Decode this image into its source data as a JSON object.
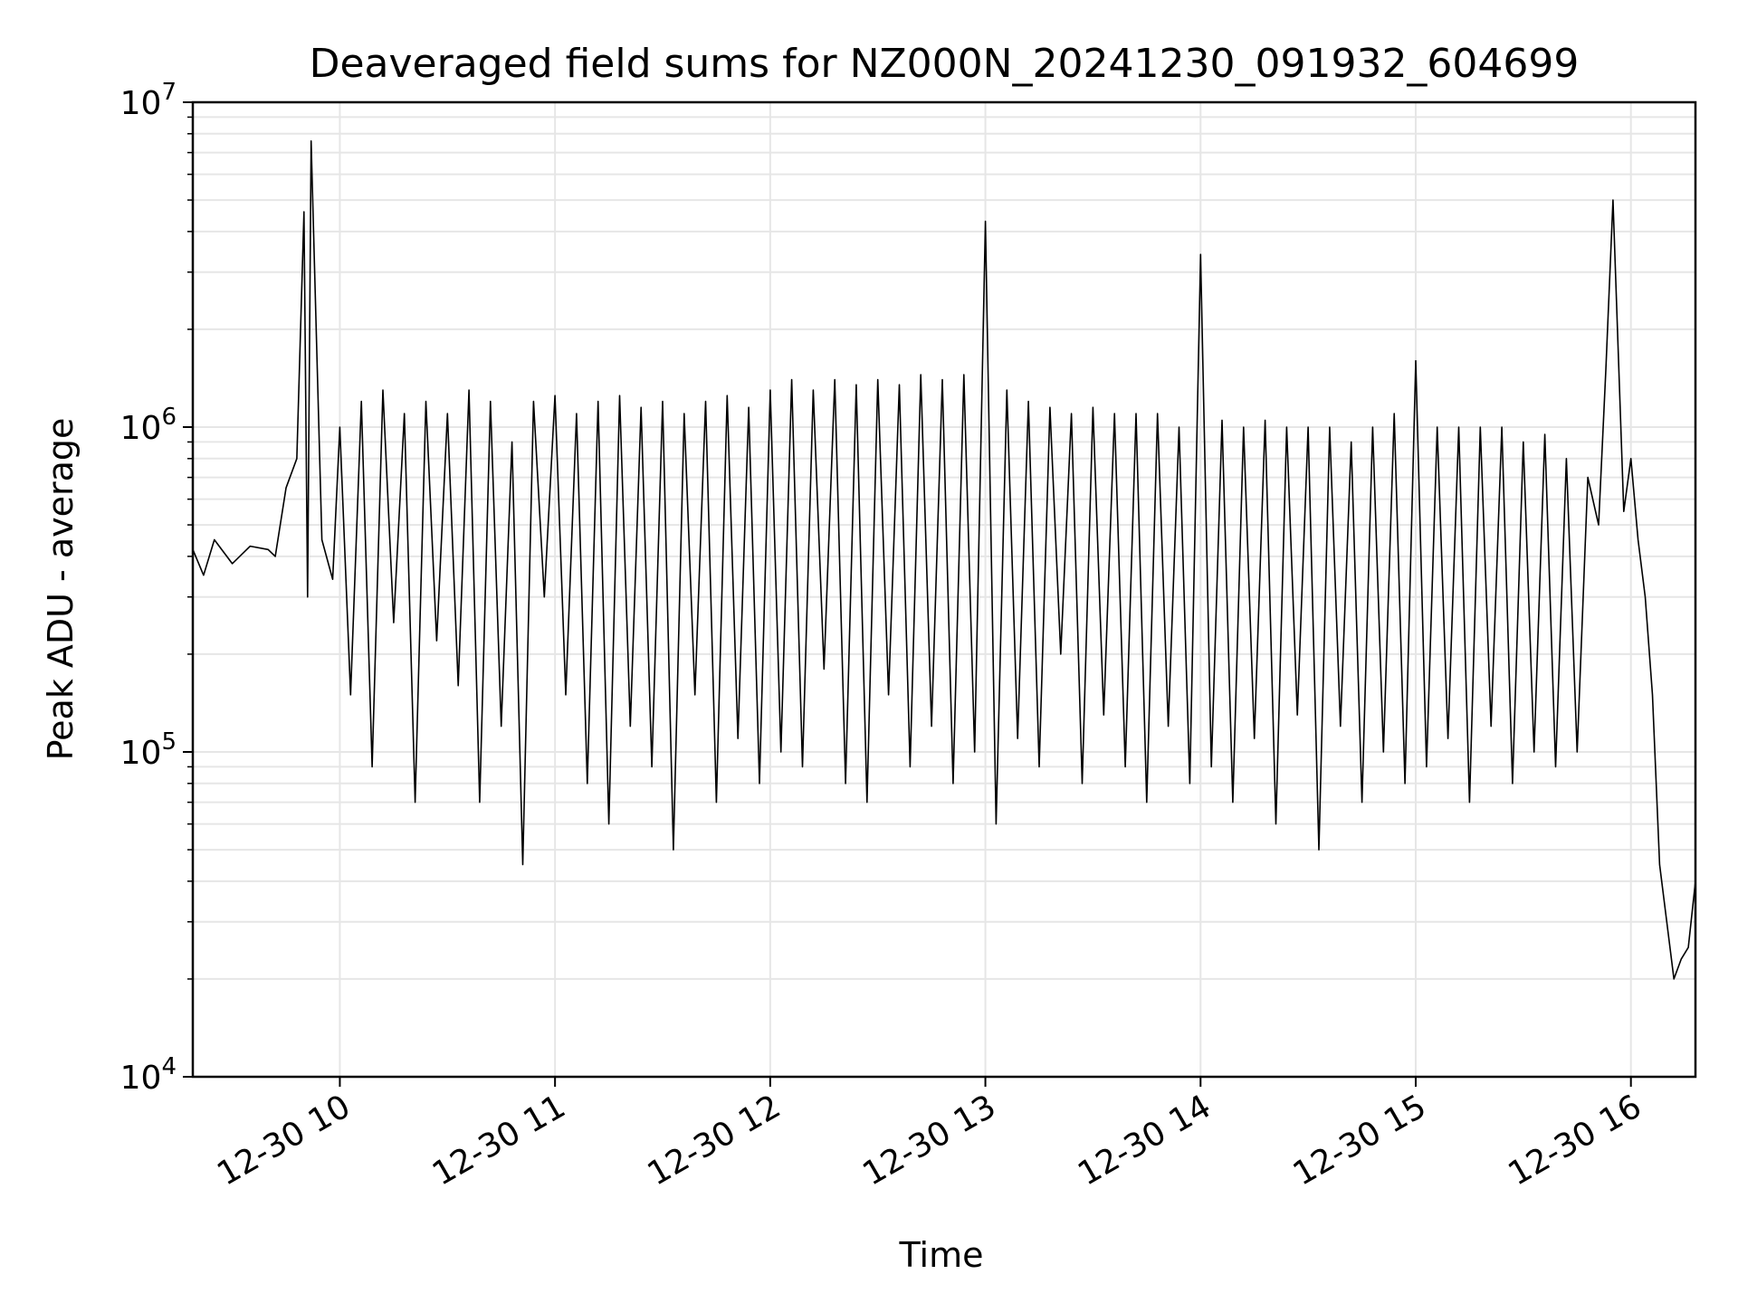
{
  "chart_data": {
    "type": "line",
    "title": "Deaveraged field sums for NZ000N_20241230_091932_604699",
    "xlabel": "Time",
    "ylabel": "Peak ADU - average",
    "yscale": "log",
    "ylim": [
      10000,
      10000000
    ],
    "xlim": [
      "2024-12-30 09:19",
      "2024-12-30 16:18"
    ],
    "grid": true,
    "line_color": "#000000",
    "grid_color": "#e6e6e6",
    "x_ticks": [
      {
        "value": "2024-12-30 10:00",
        "label": "12-30 10"
      },
      {
        "value": "2024-12-30 11:00",
        "label": "12-30 11"
      },
      {
        "value": "2024-12-30 12:00",
        "label": "12-30 12"
      },
      {
        "value": "2024-12-30 13:00",
        "label": "12-30 13"
      },
      {
        "value": "2024-12-30 14:00",
        "label": "12-30 14"
      },
      {
        "value": "2024-12-30 15:00",
        "label": "12-30 15"
      },
      {
        "value": "2024-12-30 16:00",
        "label": "12-30 16"
      }
    ],
    "y_ticks": [
      {
        "value": 10000,
        "base": "10",
        "exp": "4"
      },
      {
        "value": 100000,
        "base": "10",
        "exp": "5"
      },
      {
        "value": 1000000,
        "base": "10",
        "exp": "6"
      },
      {
        "value": 10000000,
        "base": "10",
        "exp": "7"
      }
    ],
    "series": [
      {
        "x": [
          "2024-12-30 09:19",
          "2024-12-30 09:22",
          "2024-12-30 09:25",
          "2024-12-30 09:30",
          "2024-12-30 09:35",
          "2024-12-30 09:40",
          "2024-12-30 09:42",
          "2024-12-30 09:45",
          "2024-12-30 09:48",
          "2024-12-30 09:50",
          "2024-12-30 09:51",
          "2024-12-30 09:52",
          "2024-12-30 09:55",
          "2024-12-30 09:58",
          "2024-12-30 10:00",
          "2024-12-30 10:03",
          "2024-12-30 10:06",
          "2024-12-30 10:09",
          "2024-12-30 10:12",
          "2024-12-30 10:15",
          "2024-12-30 10:18",
          "2024-12-30 10:21",
          "2024-12-30 10:24",
          "2024-12-30 10:27",
          "2024-12-30 10:30",
          "2024-12-30 10:33",
          "2024-12-30 10:36",
          "2024-12-30 10:39",
          "2024-12-30 10:42",
          "2024-12-30 10:45",
          "2024-12-30 10:48",
          "2024-12-30 10:51",
          "2024-12-30 10:54",
          "2024-12-30 10:57",
          "2024-12-30 11:00",
          "2024-12-30 11:03",
          "2024-12-30 11:06",
          "2024-12-30 11:09",
          "2024-12-30 11:12",
          "2024-12-30 11:15",
          "2024-12-30 11:18",
          "2024-12-30 11:21",
          "2024-12-30 11:24",
          "2024-12-30 11:27",
          "2024-12-30 11:30",
          "2024-12-30 11:33",
          "2024-12-30 11:36",
          "2024-12-30 11:39",
          "2024-12-30 11:42",
          "2024-12-30 11:45",
          "2024-12-30 11:48",
          "2024-12-30 11:51",
          "2024-12-30 11:54",
          "2024-12-30 11:57",
          "2024-12-30 12:00",
          "2024-12-30 12:03",
          "2024-12-30 12:06",
          "2024-12-30 12:09",
          "2024-12-30 12:12",
          "2024-12-30 12:15",
          "2024-12-30 12:18",
          "2024-12-30 12:21",
          "2024-12-30 12:24",
          "2024-12-30 12:27",
          "2024-12-30 12:30",
          "2024-12-30 12:33",
          "2024-12-30 12:36",
          "2024-12-30 12:39",
          "2024-12-30 12:42",
          "2024-12-30 12:45",
          "2024-12-30 12:48",
          "2024-12-30 12:51",
          "2024-12-30 12:54",
          "2024-12-30 12:57",
          "2024-12-30 13:00",
          "2024-12-30 13:03",
          "2024-12-30 13:06",
          "2024-12-30 13:09",
          "2024-12-30 13:12",
          "2024-12-30 13:15",
          "2024-12-30 13:18",
          "2024-12-30 13:21",
          "2024-12-30 13:24",
          "2024-12-30 13:27",
          "2024-12-30 13:30",
          "2024-12-30 13:33",
          "2024-12-30 13:36",
          "2024-12-30 13:39",
          "2024-12-30 13:42",
          "2024-12-30 13:45",
          "2024-12-30 13:48",
          "2024-12-30 13:51",
          "2024-12-30 13:54",
          "2024-12-30 13:57",
          "2024-12-30 14:00",
          "2024-12-30 14:03",
          "2024-12-30 14:06",
          "2024-12-30 14:09",
          "2024-12-30 14:12",
          "2024-12-30 14:15",
          "2024-12-30 14:18",
          "2024-12-30 14:21",
          "2024-12-30 14:24",
          "2024-12-30 14:27",
          "2024-12-30 14:30",
          "2024-12-30 14:33",
          "2024-12-30 14:36",
          "2024-12-30 14:39",
          "2024-12-30 14:42",
          "2024-12-30 14:45",
          "2024-12-30 14:48",
          "2024-12-30 14:51",
          "2024-12-30 14:54",
          "2024-12-30 14:57",
          "2024-12-30 15:00",
          "2024-12-30 15:03",
          "2024-12-30 15:06",
          "2024-12-30 15:09",
          "2024-12-30 15:12",
          "2024-12-30 15:15",
          "2024-12-30 15:18",
          "2024-12-30 15:21",
          "2024-12-30 15:24",
          "2024-12-30 15:27",
          "2024-12-30 15:30",
          "2024-12-30 15:33",
          "2024-12-30 15:36",
          "2024-12-30 15:39",
          "2024-12-30 15:42",
          "2024-12-30 15:45",
          "2024-12-30 15:48",
          "2024-12-30 15:51",
          "2024-12-30 15:53",
          "2024-12-30 15:55",
          "2024-12-30 15:58",
          "2024-12-30 16:00",
          "2024-12-30 16:02",
          "2024-12-30 16:04",
          "2024-12-30 16:06",
          "2024-12-30 16:08",
          "2024-12-30 16:10",
          "2024-12-30 16:12",
          "2024-12-30 16:14",
          "2024-12-30 16:16",
          "2024-12-30 16:18"
        ],
        "y": [
          420000,
          350000,
          450000,
          380000,
          430000,
          420000,
          400000,
          650000,
          800000,
          4600000,
          300000,
          7600000,
          450000,
          340000,
          1000000,
          150000,
          1200000,
          90000,
          1300000,
          250000,
          1100000,
          70000,
          1200000,
          220000,
          1100000,
          160000,
          1300000,
          70000,
          1200000,
          120000,
          900000,
          45000,
          1200000,
          300000,
          1250000,
          150000,
          1100000,
          80000,
          1200000,
          60000,
          1250000,
          120000,
          1150000,
          90000,
          1200000,
          50000,
          1100000,
          150000,
          1200000,
          70000,
          1250000,
          110000,
          1150000,
          80000,
          1300000,
          100000,
          1400000,
          90000,
          1300000,
          180000,
          1400000,
          80000,
          1350000,
          70000,
          1400000,
          150000,
          1350000,
          90000,
          1450000,
          120000,
          1400000,
          80000,
          1450000,
          100000,
          4300000,
          60000,
          1300000,
          110000,
          1200000,
          90000,
          1150000,
          200000,
          1100000,
          80000,
          1150000,
          130000,
          1100000,
          90000,
          1100000,
          70000,
          1100000,
          120000,
          1000000,
          80000,
          3400000,
          90000,
          1050000,
          70000,
          1000000,
          110000,
          1050000,
          60000,
          1000000,
          130000,
          1000000,
          50000,
          1000000,
          120000,
          900000,
          70000,
          1000000,
          100000,
          1100000,
          80000,
          1600000,
          90000,
          1000000,
          110000,
          1000000,
          70000,
          1000000,
          120000,
          1000000,
          80000,
          900000,
          100000,
          950000,
          90000,
          800000,
          100000,
          700000,
          500000,
          1500000,
          5000000,
          550000,
          800000,
          450000,
          300000,
          150000,
          45000,
          30000,
          20000,
          23000,
          25000,
          40000
        ]
      }
    ]
  }
}
